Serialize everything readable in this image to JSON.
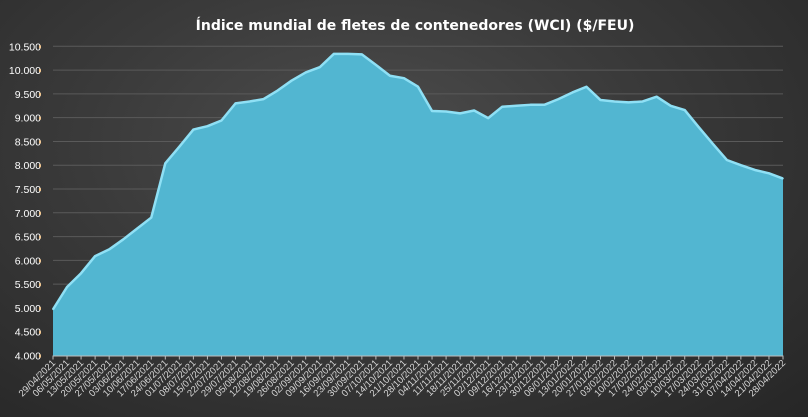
{
  "chart_data": {
    "type": "area",
    "title": "Índice mundial de fletes de contenedores (WCI) ($/FEU)",
    "xlabel": "",
    "ylabel": "",
    "ylim": [
      4000,
      10500
    ],
    "ytick_step": 500,
    "ytick_labels": [
      "4.000",
      "4.500",
      "5.000",
      "5.500",
      "6.000",
      "6.500",
      "7.000",
      "7.500",
      "8.000",
      "8.500",
      "9.000",
      "9.500",
      "10.000",
      "10.500"
    ],
    "grid": "horizontal",
    "legend": "none",
    "colors": {
      "fill": "#52b6d1",
      "edge": "#8fe0f5",
      "gridline": "#5a5a5a",
      "tick_marker": "#e08a1e",
      "background": "#3a3a3a"
    },
    "x": [
      "29/04/2021",
      "06/05/2021",
      "13/05/2021",
      "20/05/2021",
      "27/05/2021",
      "03/06/2021",
      "10/06/2021",
      "17/06/2021",
      "24/06/2021",
      "01/07/2021",
      "08/07/2021",
      "15/07/2021",
      "22/07/2021",
      "29/07/2021",
      "05/08/2021",
      "12/08/2021",
      "19/08/2021",
      "26/08/2021",
      "02/09/2021",
      "09/09/2021",
      "16/09/2021",
      "23/09/2021",
      "30/09/2021",
      "07/10/2021",
      "14/10/2021",
      "21/10/2021",
      "28/10/2021",
      "04/11/2021",
      "11/11/2021",
      "18/11/2021",
      "25/11/2021",
      "02/12/2021",
      "09/12/2021",
      "16/12/2021",
      "23/12/2021",
      "30/12/2021",
      "06/01/2022",
      "13/01/2022",
      "20/01/2022",
      "27/01/2022",
      "03/02/2022",
      "10/02/2022",
      "17/02/2022",
      "24/02/2022",
      "03/03/2022",
      "10/03/2022",
      "17/03/2022",
      "24/03/2022",
      "31/03/2022",
      "07/04/2022",
      "14/04/2022",
      "21/04/2022",
      "28/04/2022"
    ],
    "values": [
      4970,
      5440,
      5730,
      6090,
      6230,
      6440,
      6670,
      6900,
      8040,
      8390,
      8750,
      8820,
      8940,
      9300,
      9340,
      9390,
      9570,
      9780,
      9950,
      10060,
      10340,
      10340,
      10330,
      10110,
      9880,
      9830,
      9650,
      9140,
      9130,
      9090,
      9150,
      8990,
      9230,
      9250,
      9270,
      9270,
      9390,
      9530,
      9650,
      9370,
      9340,
      9320,
      9340,
      9440,
      9250,
      9160,
      8800,
      8450,
      8110,
      8000,
      7900,
      7830,
      7720
    ]
  }
}
